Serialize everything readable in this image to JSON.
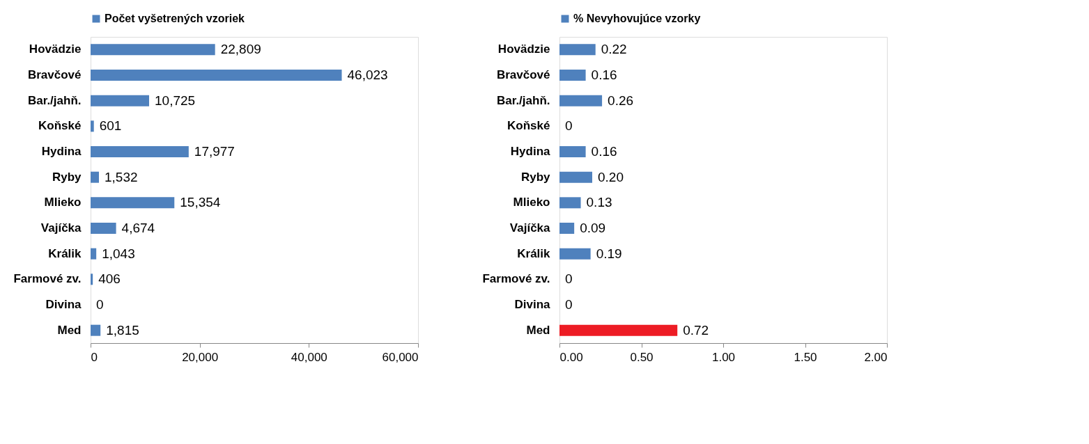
{
  "chart_data": [
    {
      "type": "bar",
      "orientation": "horizontal",
      "categories": [
        "Hovädzie",
        "Bravčové",
        "Bar./jahň.",
        "Koňské",
        "Hydina",
        "Ryby",
        "Mlieko",
        "Vajíčka",
        "Králik",
        "Farmové zv.",
        "Divina",
        "Med"
      ],
      "series": [
        {
          "name": "Počet vyšetrených vzoriek",
          "color": "#4f81bd",
          "values": [
            22809,
            46023,
            10725,
            601,
            17977,
            1532,
            15354,
            4674,
            1043,
            406,
            0,
            1815
          ],
          "value_labels": [
            "22,809",
            "46,023",
            "10,725",
            "601",
            "17,977",
            "1,532",
            "15,354",
            "4,674",
            "1,043",
            "406",
            "0",
            "1,815"
          ]
        }
      ],
      "xlim": [
        0,
        60000
      ],
      "xticks": [
        0,
        {
          "value": 20000,
          "label": "20,000"
        },
        {
          "value": 40000,
          "label": "40,000"
        },
        {
          "value": 60000,
          "label": "60,000"
        }
      ],
      "grid": false,
      "legend": "top"
    },
    {
      "type": "bar",
      "orientation": "horizontal",
      "categories": [
        "Hovädzie",
        "Bravčové",
        "Bar./jahň.",
        "Koňské",
        "Hydina",
        "Ryby",
        "Mlieko",
        "Vajíčka",
        "Králik",
        "Farmové zv.",
        "Divina",
        "Med"
      ],
      "series": [
        {
          "name": "% Nevyhovujúce vzorky",
          "color": "#4f81bd",
          "colors": [
            "#4f81bd",
            "#4f81bd",
            "#4f81bd",
            "#4f81bd",
            "#4f81bd",
            "#4f81bd",
            "#4f81bd",
            "#4f81bd",
            "#4f81bd",
            "#4f81bd",
            "#4f81bd",
            "#ed1c24"
          ],
          "values": [
            0.22,
            0.16,
            0.26,
            0,
            0.16,
            0.2,
            0.13,
            0.09,
            0.19,
            0,
            0,
            0.72
          ],
          "value_labels": [
            "0.22",
            "0.16",
            "0.26",
            "0",
            "0.16",
            "0.20",
            "0.13",
            "0.09",
            "0.19",
            "0",
            "0",
            "0.72"
          ]
        }
      ],
      "xlim": [
        0,
        2
      ],
      "xticks": [
        {
          "value": 0,
          "label": "0.00"
        },
        {
          "value": 0.5,
          "label": "0.50"
        },
        {
          "value": 1,
          "label": "1.00"
        },
        {
          "value": 1.5,
          "label": "1.50"
        },
        {
          "value": 2,
          "label": "2.00"
        }
      ],
      "grid": false,
      "legend": "top"
    }
  ]
}
